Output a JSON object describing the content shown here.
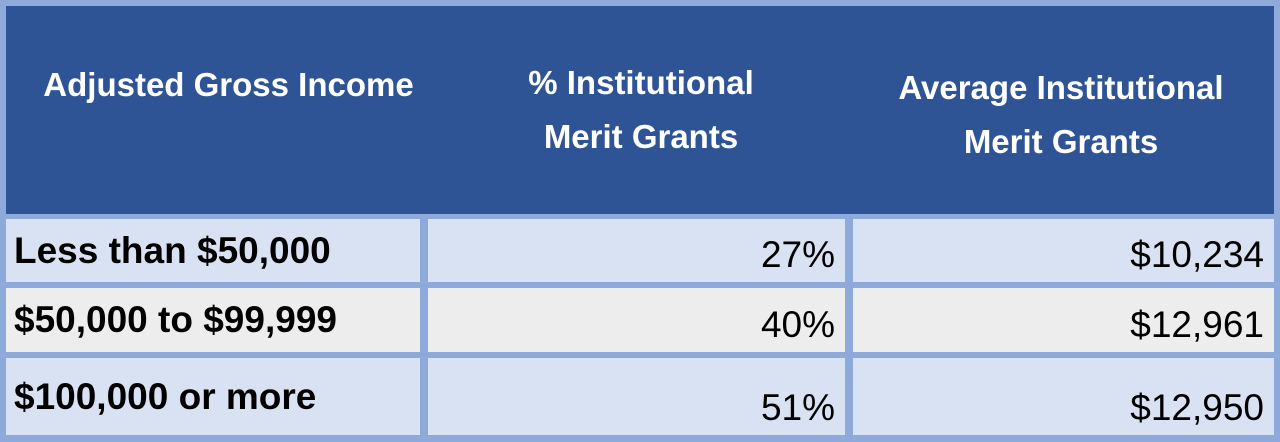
{
  "table": {
    "headers": [
      "Adjusted Gross Income",
      "% Institutional Merit Grants",
      "Average Institutional Merit Grants"
    ],
    "rows": [
      [
        "Less than $50,000",
        "27%",
        "$10,234"
      ],
      [
        "$50,000 to $99,999",
        "40%",
        "$12,961"
      ],
      [
        "$100,000 or more",
        "51%",
        "$12,950"
      ]
    ]
  }
}
